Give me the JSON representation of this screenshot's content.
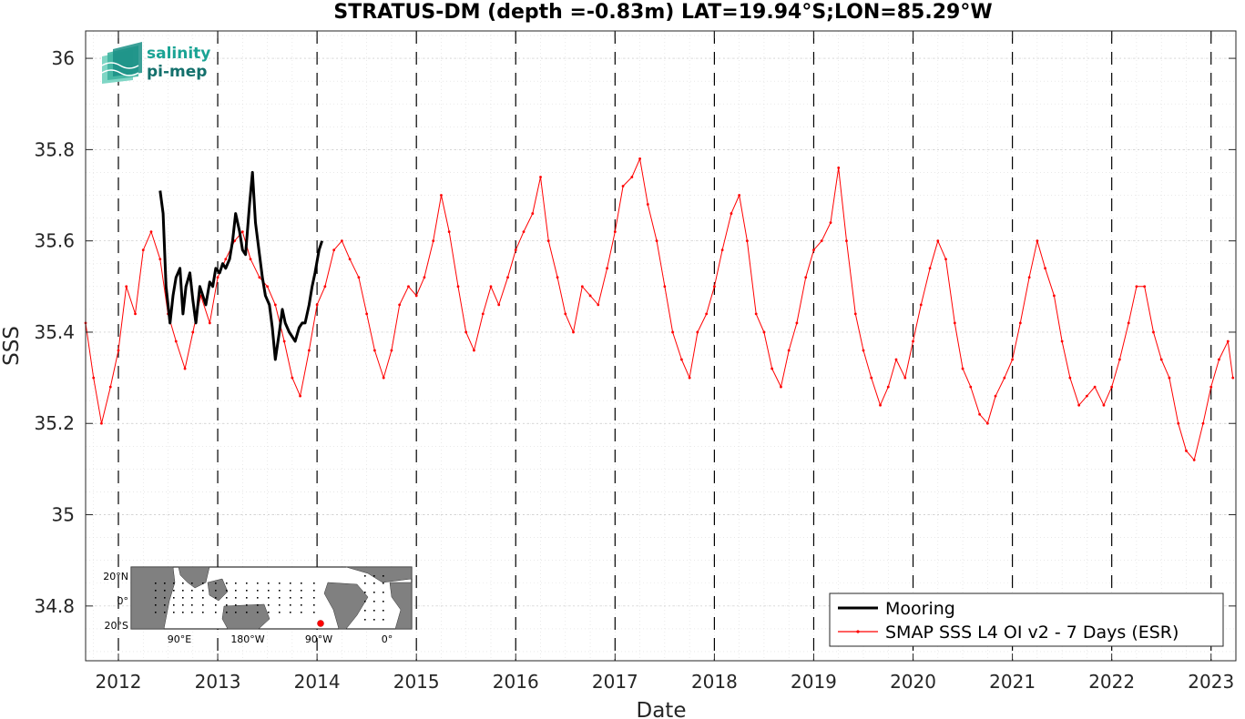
{
  "chart_data": {
    "type": "line",
    "title": "STRATUS-DM (depth =-0.83m) LAT=19.94°S;LON=85.29°W",
    "xlabel": "Date",
    "ylabel": "SSS",
    "xlim": [
      2011.67,
      2023.25
    ],
    "ylim": [
      34.68,
      36.06
    ],
    "yticks": [
      34.8,
      35,
      35.2,
      35.4,
      35.6,
      35.8,
      36
    ],
    "ytick_labels": [
      "34.8",
      "35",
      "35.2",
      "35.4",
      "35.6",
      "35.8",
      "36"
    ],
    "xticks": [
      2012,
      2013,
      2014,
      2015,
      2016,
      2017,
      2018,
      2019,
      2020,
      2021,
      2022,
      2023
    ],
    "xtick_labels": [
      "2012",
      "2013",
      "2014",
      "2015",
      "2016",
      "2017",
      "2018",
      "2019",
      "2020",
      "2021",
      "2022",
      "2023"
    ],
    "year_boundaries": [
      2012,
      2013,
      2014,
      2015,
      2016,
      2017,
      2018,
      2019,
      2020,
      2021,
      2022,
      2023
    ],
    "grid": true,
    "legend_position": "bottom-right",
    "series": [
      {
        "name": "Mooring",
        "color": "#000000",
        "style": "thick-line",
        "x": [
          2012.42,
          2012.45,
          2012.48,
          2012.52,
          2012.55,
          2012.58,
          2012.62,
          2012.65,
          2012.68,
          2012.72,
          2012.75,
          2012.78,
          2012.82,
          2012.85,
          2012.88,
          2012.92,
          2012.95,
          2012.98,
          2013.02,
          2013.05,
          2013.08,
          2013.12,
          2013.15,
          2013.18,
          2013.22,
          2013.25,
          2013.28,
          2013.32,
          2013.35,
          2013.38,
          2013.42,
          2013.45,
          2013.48,
          2013.52,
          2013.55,
          2013.58,
          2013.62,
          2013.65,
          2013.68,
          2013.72,
          2013.75,
          2013.78,
          2013.82,
          2013.85,
          2013.88,
          2013.92,
          2013.95,
          2013.98,
          2014.02,
          2014.05
        ],
        "y": [
          35.71,
          35.66,
          35.5,
          35.42,
          35.48,
          35.52,
          35.54,
          35.44,
          35.5,
          35.53,
          35.47,
          35.42,
          35.5,
          35.48,
          35.46,
          35.51,
          35.5,
          35.54,
          35.53,
          35.55,
          35.54,
          35.56,
          35.6,
          35.66,
          35.62,
          35.58,
          35.57,
          35.68,
          35.75,
          35.64,
          35.57,
          35.52,
          35.48,
          35.46,
          35.41,
          35.34,
          35.4,
          35.45,
          35.42,
          35.4,
          35.39,
          35.38,
          35.41,
          35.42,
          35.42,
          35.46,
          35.5,
          35.53,
          35.58,
          35.6
        ]
      },
      {
        "name": "SMAP SSS L4 OI v2 - 7 Days (ESR)",
        "color": "#ff0000",
        "style": "thin-line-dots",
        "x": [
          2011.67,
          2011.75,
          2011.83,
          2011.92,
          2012.0,
          2012.08,
          2012.17,
          2012.25,
          2012.33,
          2012.42,
          2012.5,
          2012.58,
          2012.67,
          2012.75,
          2012.83,
          2012.92,
          2013.0,
          2013.08,
          2013.17,
          2013.25,
          2013.33,
          2013.42,
          2013.5,
          2013.58,
          2013.67,
          2013.75,
          2013.83,
          2013.92,
          2014.0,
          2014.08,
          2014.17,
          2014.25,
          2014.33,
          2014.42,
          2014.5,
          2014.58,
          2014.67,
          2014.75,
          2014.83,
          2014.92,
          2015.0,
          2015.08,
          2015.17,
          2015.25,
          2015.33,
          2015.42,
          2015.5,
          2015.58,
          2015.67,
          2015.75,
          2015.83,
          2015.92,
          2016.0,
          2016.08,
          2016.17,
          2016.25,
          2016.33,
          2016.42,
          2016.5,
          2016.58,
          2016.67,
          2016.75,
          2016.83,
          2016.92,
          2017.0,
          2017.08,
          2017.17,
          2017.25,
          2017.33,
          2017.42,
          2017.5,
          2017.58,
          2017.67,
          2017.75,
          2017.83,
          2017.92,
          2018.0,
          2018.08,
          2018.17,
          2018.25,
          2018.33,
          2018.42,
          2018.5,
          2018.58,
          2018.67,
          2018.75,
          2018.83,
          2018.92,
          2019.0,
          2019.08,
          2019.17,
          2019.25,
          2019.33,
          2019.42,
          2019.5,
          2019.58,
          2019.67,
          2019.75,
          2019.83,
          2019.92,
          2020.0,
          2020.08,
          2020.17,
          2020.25,
          2020.33,
          2020.42,
          2020.5,
          2020.58,
          2020.67,
          2020.75,
          2020.83,
          2020.92,
          2021.0,
          2021.08,
          2021.17,
          2021.25,
          2021.33,
          2021.42,
          2021.5,
          2021.58,
          2021.67,
          2021.75,
          2021.83,
          2021.92,
          2022.0,
          2022.08,
          2022.17,
          2022.25,
          2022.33,
          2022.42,
          2022.5,
          2022.58,
          2022.67,
          2022.75,
          2022.83,
          2022.92,
          2023.0,
          2023.08,
          2023.17,
          2023.22
        ],
        "y": [
          35.42,
          35.3,
          35.2,
          35.28,
          35.36,
          35.5,
          35.44,
          35.58,
          35.62,
          35.56,
          35.44,
          35.38,
          35.32,
          35.4,
          35.48,
          35.42,
          35.52,
          35.56,
          35.6,
          35.62,
          35.56,
          35.52,
          35.5,
          35.46,
          35.38,
          35.3,
          35.26,
          35.36,
          35.46,
          35.5,
          35.58,
          35.6,
          35.56,
          35.52,
          35.44,
          35.36,
          35.3,
          35.36,
          35.46,
          35.5,
          35.48,
          35.52,
          35.6,
          35.7,
          35.62,
          35.5,
          35.4,
          35.36,
          35.44,
          35.5,
          35.46,
          35.52,
          35.58,
          35.62,
          35.66,
          35.74,
          35.6,
          35.52,
          35.44,
          35.4,
          35.5,
          35.48,
          35.46,
          35.54,
          35.62,
          35.72,
          35.74,
          35.78,
          35.68,
          35.6,
          35.5,
          35.4,
          35.34,
          35.3,
          35.4,
          35.44,
          35.5,
          35.58,
          35.66,
          35.7,
          35.6,
          35.44,
          35.4,
          35.32,
          35.28,
          35.36,
          35.42,
          35.52,
          35.58,
          35.6,
          35.64,
          35.76,
          35.6,
          35.44,
          35.36,
          35.3,
          35.24,
          35.28,
          35.34,
          35.3,
          35.38,
          35.46,
          35.54,
          35.6,
          35.56,
          35.42,
          35.32,
          35.28,
          35.22,
          35.2,
          35.26,
          35.3,
          35.34,
          35.42,
          35.52,
          35.6,
          35.54,
          35.48,
          35.38,
          35.3,
          35.24,
          35.26,
          35.28,
          35.24,
          35.28,
          35.34,
          35.42,
          35.5,
          35.5,
          35.4,
          35.34,
          35.3,
          35.2,
          35.14,
          35.12,
          35.2,
          35.28,
          35.34,
          35.38,
          35.3
        ]
      }
    ],
    "inset_map": {
      "lat_labels": [
        "20°N",
        "0°",
        "20°S"
      ],
      "lon_labels": [
        "90°E",
        "180°W",
        "90°W",
        "0°"
      ],
      "marker_color": "#ff0000"
    },
    "logo": {
      "line1": "salinity",
      "line2": "pi-mep"
    }
  }
}
